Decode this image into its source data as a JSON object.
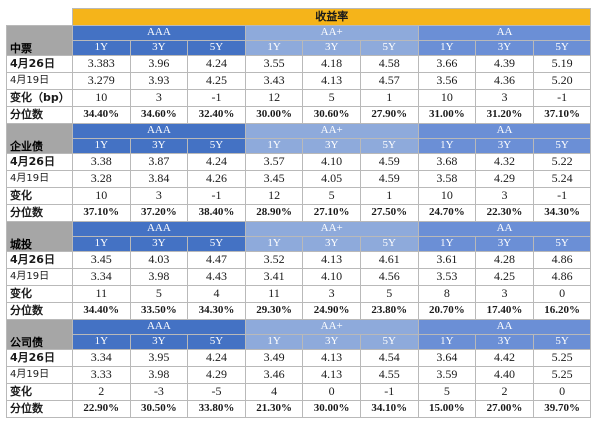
{
  "title": "收益率",
  "grade_labels": [
    "AAA",
    "AA+",
    "AA"
  ],
  "tenors": [
    "1Y",
    "3Y",
    "5Y"
  ],
  "row_labels": {
    "cur": "4月26日",
    "prev": "4月19日",
    "pct": "分位数"
  },
  "sections": [
    {
      "name": "中票",
      "change_label": "变化（bp）",
      "cur": [
        "3.383",
        "3.96",
        "4.24",
        "3.55",
        "4.18",
        "4.58",
        "3.66",
        "4.39",
        "5.19"
      ],
      "prev": [
        "3.279",
        "3.93",
        "4.25",
        "3.43",
        "4.13",
        "4.57",
        "3.56",
        "4.36",
        "5.20"
      ],
      "chg": [
        "10",
        "3",
        "-1",
        "12",
        "5",
        "1",
        "10",
        "3",
        "-1"
      ],
      "pct": [
        "34.40%",
        "34.60%",
        "32.40%",
        "30.00%",
        "30.60%",
        "27.90%",
        "31.00%",
        "31.20%",
        "37.10%"
      ]
    },
    {
      "name": "企业债",
      "change_label": "变化",
      "cur": [
        "3.38",
        "3.87",
        "4.24",
        "3.57",
        "4.10",
        "4.59",
        "3.68",
        "4.32",
        "5.22"
      ],
      "prev": [
        "3.28",
        "3.84",
        "4.26",
        "3.45",
        "4.05",
        "4.59",
        "3.58",
        "4.29",
        "5.24"
      ],
      "chg": [
        "10",
        "3",
        "-1",
        "12",
        "5",
        "1",
        "10",
        "3",
        "-1"
      ],
      "pct": [
        "37.10%",
        "37.20%",
        "38.40%",
        "28.90%",
        "27.10%",
        "27.50%",
        "24.70%",
        "22.30%",
        "34.30%"
      ]
    },
    {
      "name": "城投",
      "change_label": "变化",
      "cur": [
        "3.45",
        "4.03",
        "4.47",
        "3.52",
        "4.13",
        "4.61",
        "3.61",
        "4.28",
        "4.86"
      ],
      "prev": [
        "3.34",
        "3.98",
        "4.43",
        "3.41",
        "4.10",
        "4.56",
        "3.53",
        "4.25",
        "4.86"
      ],
      "chg": [
        "11",
        "5",
        "4",
        "11",
        "3",
        "5",
        "8",
        "3",
        "0"
      ],
      "pct": [
        "34.40%",
        "33.50%",
        "34.30%",
        "29.30%",
        "24.90%",
        "23.80%",
        "20.70%",
        "17.40%",
        "16.20%"
      ]
    },
    {
      "name": "公司债",
      "change_label": "变化",
      "cur": [
        "3.34",
        "3.95",
        "4.24",
        "3.49",
        "4.13",
        "4.54",
        "3.64",
        "4.42",
        "5.25"
      ],
      "prev": [
        "3.33",
        "3.98",
        "4.29",
        "3.46",
        "4.13",
        "4.55",
        "3.59",
        "4.40",
        "5.25"
      ],
      "chg": [
        "2",
        "-3",
        "-5",
        "4",
        "0",
        "-1",
        "5",
        "2",
        "0"
      ],
      "pct": [
        "22.90%",
        "30.50%",
        "33.80%",
        "21.30%",
        "30.00%",
        "34.10%",
        "15.00%",
        "27.00%",
        "39.70%"
      ]
    }
  ],
  "colors": {
    "title_bg": "#f5b41a",
    "aaa_bg": "#4472c4",
    "aa_plus_bg": "#8eaadb",
    "aa_bg": "#6b8fd6",
    "section_bg": "#a6a6a6"
  }
}
